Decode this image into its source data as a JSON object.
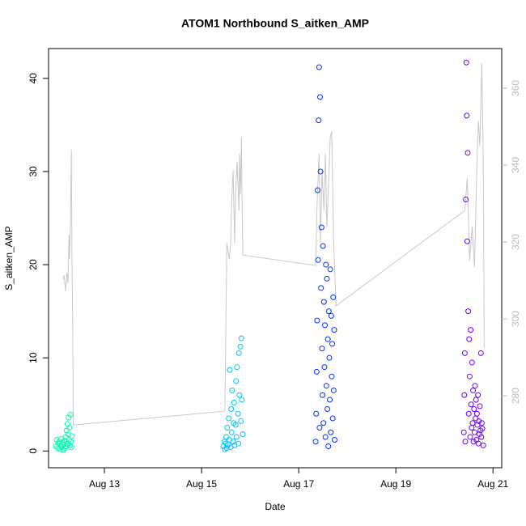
{
  "chart_data": {
    "type": "scatter",
    "title": "ATOM1 Northbound S_aitken_AMP",
    "x_label": "Date",
    "y_label": "S_aitken_AMP",
    "xlim": [
      11.85,
      21.18
    ],
    "xticks": [
      {
        "value": 13,
        "label": "Aug 13"
      },
      {
        "value": 15,
        "label": "Aug 15"
      },
      {
        "value": 17,
        "label": "Aug 17"
      },
      {
        "value": 19,
        "label": "Aug 19"
      },
      {
        "value": 21,
        "label": "Aug 21"
      }
    ],
    "ylim": [
      -1.8,
      43.2
    ],
    "yticks": [
      0,
      10,
      20,
      30,
      40
    ],
    "y2lim": [
      261.3,
      370.3
    ],
    "y2ticks": [
      280,
      300,
      320,
      340,
      360
    ],
    "series": [
      {
        "color": "#00FFB2",
        "x": [
          12.0,
          12.02,
          12.04,
          12.05,
          12.07,
          12.08,
          12.1,
          12.11,
          12.12,
          12.14,
          12.15,
          12.16,
          12.18,
          12.19,
          12.2,
          12.21,
          12.22,
          12.23,
          12.24,
          12.25,
          12.26,
          12.27,
          12.28,
          12.29,
          12.3,
          12.31,
          12.32,
          12.33
        ],
        "values": [
          0.5,
          1.2,
          0.3,
          0.8,
          1.0,
          0.2,
          0.6,
          1.3,
          0.4,
          0.9,
          0.1,
          0.7,
          1.1,
          0.3,
          1.5,
          0.5,
          2.2,
          0.8,
          2.9,
          1.8,
          3.6,
          1.2,
          2.5,
          0.6,
          3.9,
          1.0,
          0.4,
          1.6
        ]
      },
      {
        "color": "#00C3FF",
        "x": [
          15.45,
          15.47,
          15.48,
          15.5,
          15.51,
          15.52,
          15.53,
          15.55,
          15.56,
          15.57,
          15.58,
          15.6,
          15.61,
          15.62,
          15.63,
          15.65,
          15.66,
          15.67,
          15.68,
          15.7,
          15.71,
          15.72,
          15.73,
          15.75,
          15.76,
          15.77,
          15.78,
          15.8,
          15.81,
          15.82,
          15.83,
          15.85
        ],
        "values": [
          0.5,
          1.0,
          0.2,
          0.8,
          1.5,
          0.3,
          2.5,
          0.7,
          3.5,
          1.2,
          8.7,
          0.4,
          4.5,
          2.0,
          6.5,
          1.0,
          3.0,
          5.2,
          0.6,
          2.8,
          7.5,
          1.5,
          9.0,
          4.0,
          0.8,
          10.5,
          6.0,
          11.2,
          3.2,
          12.1,
          5.5,
          1.8
        ]
      },
      {
        "color": "#0031FF",
        "x": [
          17.35,
          17.36,
          17.37,
          17.38,
          17.39,
          17.4,
          17.41,
          17.42,
          17.43,
          17.44,
          17.45,
          17.46,
          17.47,
          17.48,
          17.49,
          17.5,
          17.51,
          17.52,
          17.53,
          17.54,
          17.55,
          17.56,
          17.57,
          17.58,
          17.59,
          17.6,
          17.61,
          17.62,
          17.63,
          17.64,
          17.65,
          17.66,
          17.67,
          17.68,
          17.69,
          17.7,
          17.71,
          17.72,
          17.73,
          17.74
        ],
        "values": [
          1.0,
          4.0,
          8.5,
          14.0,
          28.0,
          20.5,
          35.5,
          41.2,
          2.5,
          38.0,
          30.0,
          17.5,
          24.0,
          11.0,
          6.0,
          22.0,
          3.0,
          16.0,
          9.0,
          13.5,
          1.5,
          20.0,
          7.0,
          18.5,
          4.5,
          12.0,
          0.5,
          15.0,
          10.0,
          5.5,
          19.5,
          2.0,
          14.5,
          8.0,
          11.5,
          3.5,
          16.5,
          6.5,
          13.0,
          1.2
        ]
      },
      {
        "color": "#6E00FF",
        "x": [
          20.4,
          20.41,
          20.42,
          20.43,
          20.44,
          20.45,
          20.46,
          20.47,
          20.48,
          20.49,
          20.5,
          20.51,
          20.52,
          20.53,
          20.54,
          20.55,
          20.56,
          20.57,
          20.58,
          20.59,
          20.6,
          20.61,
          20.62,
          20.63,
          20.64,
          20.65,
          20.66,
          20.67,
          20.68,
          20.69,
          20.7,
          20.71,
          20.72,
          20.73,
          20.74,
          20.75,
          20.76,
          20.77,
          20.78,
          20.8
        ],
        "values": [
          2.0,
          6.0,
          10.5,
          1.0,
          27.0,
          41.7,
          36.0,
          22.5,
          32.0,
          15.0,
          4.0,
          12.0,
          8.0,
          1.5,
          13.0,
          5.0,
          2.5,
          9.5,
          3.0,
          6.5,
          1.0,
          4.5,
          2.0,
          7.0,
          3.5,
          5.5,
          1.2,
          4.0,
          2.8,
          6.0,
          0.8,
          3.2,
          1.8,
          4.8,
          2.2,
          10.5,
          1.5,
          3.0,
          2.4,
          0.6
        ]
      },
      {
        "type": "line",
        "axis": "y2",
        "color": "#C8C8C8",
        "x": [
          12.15,
          12.17,
          12.2,
          12.23,
          12.25,
          12.27,
          12.28,
          12.3,
          12.32,
          12.33,
          12.35,
          12.36,
          15.48,
          15.52,
          15.57,
          15.6,
          15.62,
          15.65,
          15.68,
          15.7,
          15.73,
          15.77,
          15.78,
          15.8,
          15.82,
          15.83,
          15.85,
          17.35,
          17.38,
          17.42,
          17.45,
          17.48,
          17.52,
          17.55,
          17.58,
          17.62,
          17.65,
          17.68,
          17.72,
          17.77,
          20.42,
          20.47,
          20.52,
          20.57,
          20.62,
          20.67,
          20.7,
          20.73,
          20.77,
          20.8,
          20.82
        ],
        "values": [
          310.3,
          311.4,
          307.2,
          312.0,
          309.3,
          321.9,
          315.6,
          324.0,
          344.0,
          319.8,
          294.5,
          272.4,
          276.0,
          319.8,
          315.6,
          319.8,
          330.3,
          338.7,
          319.8,
          332.4,
          340.8,
          328.2,
          342.9,
          332.4,
          347.2,
          334.5,
          316.6,
          313.9,
          330.3,
          342.9,
          319.8,
          338.7,
          328.2,
          342.9,
          324.0,
          336.6,
          347.2,
          348.8,
          319.8,
          303.4,
          328.2,
          336.6,
          315.2,
          324.0,
          313.5,
          340.8,
          351.4,
          345.1,
          366.5,
          340.8,
          292.4
        ]
      }
    ]
  }
}
